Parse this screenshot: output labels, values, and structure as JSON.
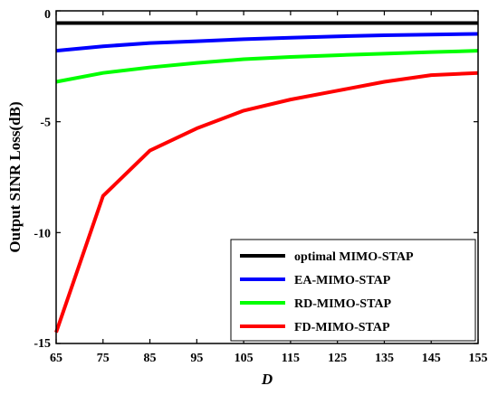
{
  "chart_data": {
    "type": "line",
    "title": "",
    "xlabel": "D",
    "ylabel": "Output SINR Loss(dB)",
    "xlim": [
      65,
      155
    ],
    "ylim": [
      -15,
      0
    ],
    "x_ticks": [
      65,
      75,
      85,
      95,
      105,
      115,
      125,
      135,
      145,
      155
    ],
    "y_ticks": [
      0,
      -5,
      -10,
      -15
    ],
    "y_tick_labels": [
      "0",
      "-5",
      "-10",
      "-15"
    ],
    "grid": false,
    "legend_position": "bottom-right",
    "x": [
      65,
      75,
      85,
      95,
      105,
      115,
      125,
      135,
      145,
      155
    ],
    "series": [
      {
        "name": "optimal MIMO-STAP",
        "color": "#000000",
        "values": [
          -0.55,
          -0.55,
          -0.55,
          -0.55,
          -0.55,
          -0.55,
          -0.55,
          -0.55,
          -0.55,
          -0.55
        ]
      },
      {
        "name": "EA-MIMO-STAP",
        "color": "#0000ff",
        "values": [
          -1.8,
          -1.6,
          -1.45,
          -1.37,
          -1.28,
          -1.21,
          -1.15,
          -1.1,
          -1.07,
          -1.04
        ]
      },
      {
        "name": "RD-MIMO-STAP",
        "color": "#00ff00",
        "values": [
          -3.2,
          -2.8,
          -2.55,
          -2.35,
          -2.18,
          -2.08,
          -2.0,
          -1.93,
          -1.86,
          -1.8
        ]
      },
      {
        "name": "FD-MIMO-STAP",
        "color": "#ff0000",
        "values": [
          -14.5,
          -8.35,
          -6.3,
          -5.3,
          -4.5,
          -4.0,
          -3.6,
          -3.2,
          -2.9,
          -2.8
        ]
      }
    ]
  }
}
